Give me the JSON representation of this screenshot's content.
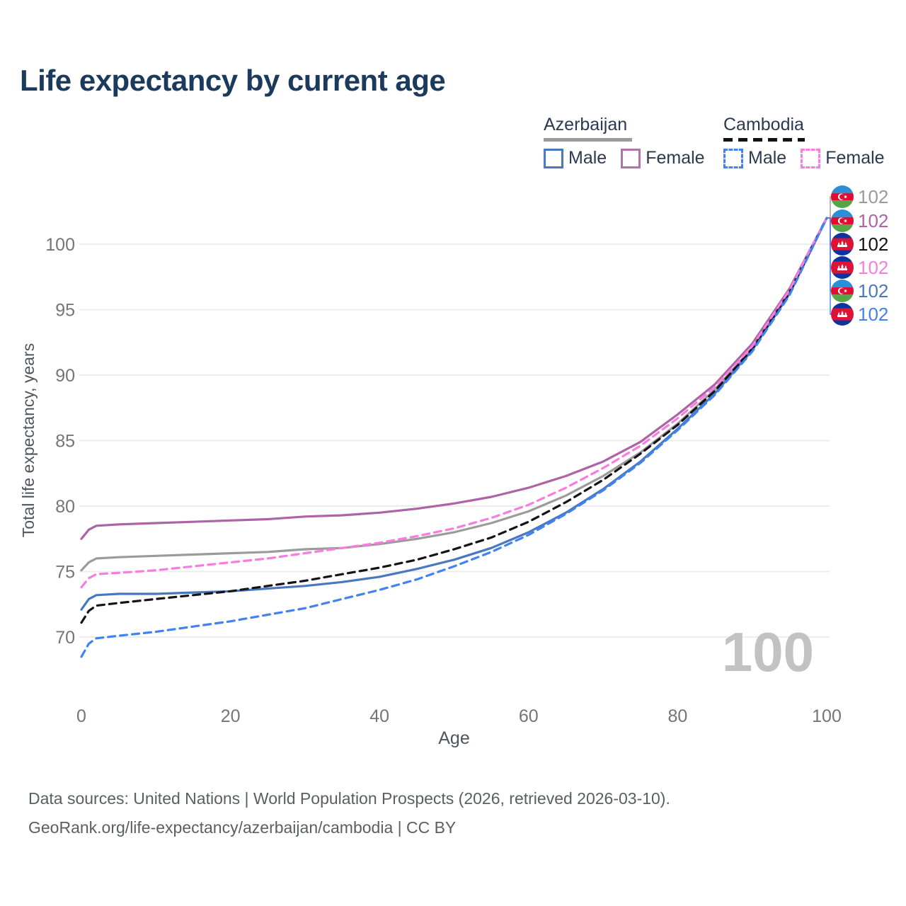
{
  "title": "Life expectancy by current age",
  "legend": {
    "groups": [
      {
        "name": "Azerbaijan",
        "line_style": "solid",
        "color": "#9b9b9b",
        "items": [
          {
            "label": "Male"
          },
          {
            "label": "Female"
          }
        ]
      },
      {
        "name": "Cambodia",
        "line_style": "dashed",
        "color": "#141414",
        "items": [
          {
            "label": "Male"
          },
          {
            "label": "Female"
          }
        ]
      }
    ]
  },
  "chart_data": {
    "type": "line",
    "title": "Life expectancy by current age",
    "xlabel": "Age",
    "ylabel": "Total life expectancy, years",
    "xticks": [
      0,
      20,
      40,
      60,
      80,
      100
    ],
    "yticks": [
      70,
      75,
      80,
      85,
      90,
      95,
      100
    ],
    "xlim": [
      0,
      100
    ],
    "ylim": [
      67,
      103
    ],
    "grid": "horizontal",
    "watermark": "100",
    "x": [
      0,
      1,
      2,
      5,
      10,
      15,
      20,
      25,
      30,
      35,
      40,
      45,
      50,
      55,
      60,
      65,
      70,
      75,
      80,
      85,
      90,
      95,
      100
    ],
    "series": [
      {
        "id": "az_all",
        "name": "Azerbaijan — Both sexes",
        "country": "Azerbaijan",
        "color": "#9b9b9b",
        "dashed": false,
        "end_row": 0,
        "end_label": "102",
        "flag": "az",
        "values": [
          75.1,
          75.7,
          76.0,
          76.1,
          76.2,
          76.3,
          76.4,
          76.5,
          76.7,
          76.8,
          77.1,
          77.5,
          78.0,
          78.7,
          79.6,
          80.8,
          82.3,
          84.1,
          86.3,
          88.9,
          92.1,
          96.4,
          102
        ]
      },
      {
        "id": "az_female",
        "name": "Azerbaijan — Female",
        "country": "Azerbaijan",
        "color": "#ad63a5",
        "dashed": false,
        "end_row": 1,
        "end_label": "102",
        "flag": "az",
        "values": [
          77.5,
          78.2,
          78.5,
          78.6,
          78.7,
          78.8,
          78.9,
          79.0,
          79.2,
          79.3,
          79.5,
          79.8,
          80.2,
          80.7,
          81.4,
          82.3,
          83.4,
          84.9,
          87.0,
          89.3,
          92.4,
          96.6,
          102
        ]
      },
      {
        "id": "az_male",
        "name": "Azerbaijan — Male",
        "country": "Azerbaijan",
        "color": "#4878bf",
        "dashed": false,
        "end_row": 4,
        "end_label": "102",
        "flag": "az",
        "values": [
          72.1,
          72.9,
          73.2,
          73.3,
          73.3,
          73.4,
          73.5,
          73.7,
          73.9,
          74.2,
          74.6,
          75.2,
          75.9,
          76.8,
          78.0,
          79.5,
          81.3,
          83.4,
          85.9,
          88.6,
          91.9,
          96.2,
          102
        ]
      },
      {
        "id": "cam_all",
        "name": "Cambodia — Both sexes",
        "country": "Cambodia",
        "color": "#141414",
        "dashed": true,
        "end_row": 2,
        "end_label": "102",
        "flag": "cam",
        "values": [
          71.1,
          72.0,
          72.4,
          72.6,
          72.9,
          73.2,
          73.5,
          73.9,
          74.3,
          74.8,
          75.3,
          75.9,
          76.7,
          77.6,
          78.8,
          80.3,
          82.0,
          84.0,
          86.2,
          88.8,
          92.0,
          96.3,
          102
        ]
      },
      {
        "id": "cam_female",
        "name": "Cambodia — Female",
        "country": "Cambodia",
        "color": "#fa7ce0",
        "dashed": true,
        "end_row": 3,
        "end_label": "102",
        "flag": "cam",
        "values": [
          73.8,
          74.5,
          74.8,
          74.9,
          75.1,
          75.4,
          75.7,
          76.0,
          76.4,
          76.8,
          77.2,
          77.7,
          78.3,
          79.1,
          80.1,
          81.4,
          82.9,
          84.6,
          86.7,
          89.1,
          92.2,
          96.5,
          102
        ]
      },
      {
        "id": "cam_male",
        "name": "Cambodia — Male",
        "country": "Cambodia",
        "color": "#4083f0",
        "dashed": true,
        "end_row": 5,
        "end_label": "102",
        "flag": "cam",
        "values": [
          68.5,
          69.5,
          69.9,
          70.1,
          70.4,
          70.8,
          71.2,
          71.7,
          72.2,
          72.9,
          73.6,
          74.4,
          75.4,
          76.5,
          77.8,
          79.4,
          81.2,
          83.3,
          85.8,
          88.5,
          91.8,
          96.1,
          102
        ]
      }
    ],
    "legend_position": "top-right"
  },
  "footer": {
    "line1": "Data sources: United Nations | World Population Prospects (2026, retrieved 2026-03-10).",
    "line2": "GeoRank.org/life-expectancy/azerbaijan/cambodia | CC BY"
  },
  "colors": {
    "title": "#1c3a5e",
    "tick": "#757575",
    "axis_label": "#4f555c",
    "grid": "#ececec",
    "watermark": "#c2c2c2",
    "footer": "#5b5e63",
    "az_flag": [
      "#2b8fd8",
      "#e00d33",
      "#56a546"
    ],
    "cam_flag": [
      "#0d34a0",
      "#dc1236"
    ]
  }
}
